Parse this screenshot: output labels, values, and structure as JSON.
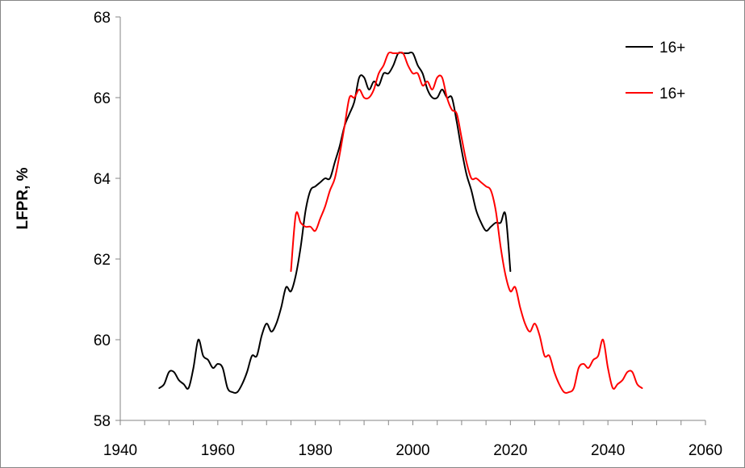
{
  "chart_data": {
    "type": "line",
    "title": "",
    "xlabel": "",
    "ylabel": "LFPR,  %",
    "xlim": [
      1940,
      2060
    ],
    "ylim": [
      58,
      68
    ],
    "x_ticks": [
      1940,
      1960,
      1980,
      2000,
      2020,
      2040,
      2060
    ],
    "x_tick_labels": [
      "1940",
      "1960",
      "1980",
      "2000",
      "2020",
      "2040",
      "2060"
    ],
    "y_ticks": [
      58,
      60,
      62,
      64,
      66,
      68
    ],
    "y_tick_labels": [
      "58",
      "60",
      "62",
      "64",
      "66",
      "68"
    ],
    "grid": false,
    "legend_position": "top-right",
    "series": [
      {
        "name": "16+",
        "color": "#000000",
        "x": [
          1948,
          1949,
          1950,
          1951,
          1952,
          1953,
          1954,
          1955,
          1956,
          1957,
          1958,
          1959,
          1960,
          1961,
          1962,
          1963,
          1964,
          1965,
          1966,
          1967,
          1968,
          1969,
          1970,
          1971,
          1972,
          1973,
          1974,
          1975,
          1976,
          1977,
          1978,
          1979,
          1980,
          1981,
          1982,
          1983,
          1984,
          1985,
          1986,
          1987,
          1988,
          1989,
          1990,
          1991,
          1992,
          1993,
          1994,
          1995,
          1996,
          1997,
          1998,
          1999,
          2000,
          2001,
          2002,
          2003,
          2004,
          2005,
          2006,
          2007,
          2008,
          2009,
          2010,
          2011,
          2012,
          2013,
          2014,
          2015,
          2016,
          2017,
          2018,
          2019,
          2020
        ],
        "values": [
          58.8,
          58.9,
          59.2,
          59.2,
          59.0,
          58.9,
          58.8,
          59.3,
          60.0,
          59.6,
          59.5,
          59.3,
          59.4,
          59.3,
          58.8,
          58.7,
          58.7,
          58.9,
          59.2,
          59.6,
          59.6,
          60.1,
          60.4,
          60.2,
          60.4,
          60.8,
          61.3,
          61.2,
          61.6,
          62.3,
          63.2,
          63.7,
          63.8,
          63.9,
          64.0,
          64.0,
          64.4,
          64.8,
          65.3,
          65.6,
          65.9,
          66.5,
          66.5,
          66.2,
          66.4,
          66.3,
          66.6,
          66.6,
          66.8,
          67.1,
          67.1,
          67.1,
          67.1,
          66.8,
          66.6,
          66.2,
          66.0,
          66.0,
          66.2,
          66.0,
          66.0,
          65.4,
          64.7,
          64.1,
          63.7,
          63.2,
          62.9,
          62.7,
          62.8,
          62.9,
          62.9,
          63.1,
          61.7
        ]
      },
      {
        "name": "16+",
        "color": "#ff0000",
        "x": [
          1975,
          1976,
          1977,
          1978,
          1979,
          1980,
          1981,
          1982,
          1983,
          1984,
          1985,
          1986,
          1987,
          1988,
          1989,
          1990,
          1991,
          1992,
          1993,
          1994,
          1995,
          1996,
          1997,
          1998,
          1999,
          2000,
          2001,
          2002,
          2003,
          2004,
          2005,
          2006,
          2007,
          2008,
          2009,
          2010,
          2011,
          2012,
          2013,
          2014,
          2015,
          2016,
          2017,
          2018,
          2019,
          2020,
          2021,
          2022,
          2023,
          2024,
          2025,
          2026,
          2027,
          2028,
          2029,
          2030,
          2031,
          2032,
          2033,
          2034,
          2035,
          2036,
          2037,
          2038,
          2039,
          2040,
          2041,
          2042,
          2043,
          2044,
          2045,
          2046,
          2047
        ],
        "values": [
          61.7,
          63.1,
          62.9,
          62.8,
          62.8,
          62.7,
          63.0,
          63.3,
          63.7,
          64.0,
          64.6,
          65.3,
          66.0,
          66.0,
          66.2,
          66.0,
          66.0,
          66.2,
          66.6,
          66.8,
          67.1,
          67.1,
          67.1,
          67.1,
          66.8,
          66.6,
          66.6,
          66.3,
          66.4,
          66.2,
          66.5,
          66.5,
          66.0,
          65.7,
          65.6,
          65.0,
          64.4,
          64.0,
          64.0,
          63.9,
          63.8,
          63.7,
          63.2,
          62.3,
          61.6,
          61.2,
          61.3,
          60.8,
          60.4,
          60.2,
          60.4,
          60.1,
          59.6,
          59.6,
          59.2,
          58.9,
          58.7,
          58.7,
          58.8,
          59.3,
          59.4,
          59.3,
          59.5,
          59.6,
          60.0,
          59.3,
          58.8,
          58.9,
          59.0,
          59.2,
          59.2,
          58.9,
          58.8
        ]
      }
    ]
  }
}
